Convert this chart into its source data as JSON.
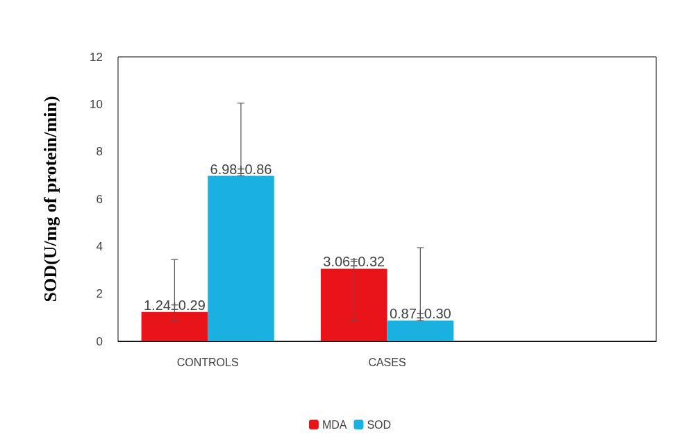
{
  "chart_data": {
    "type": "bar",
    "ylabel": "SOD(U/mg of protein/min)",
    "categories": [
      "CONTROLS",
      "CASES",
      null
    ],
    "series": [
      {
        "name": "MDA",
        "color": "#e8141a",
        "values": [
          1.24,
          3.06,
          null
        ],
        "errors": [
          [
            0.85,
            3.45
          ],
          [
            0.85,
            3.45
          ],
          null
        ],
        "value_labels": [
          "1.24±0.29",
          "3.06±0.32",
          null
        ]
      },
      {
        "name": "SOD",
        "color": "#1ab0e0",
        "values": [
          6.98,
          0.87,
          null
        ],
        "errors": [
          [
            6.98,
            10.05
          ],
          [
            0.87,
            3.95
          ],
          null
        ],
        "value_labels": [
          "6.98±0.86",
          "0.87±0.30",
          null
        ]
      }
    ],
    "ylim": [
      0,
      12
    ],
    "yticks": [
      0,
      2,
      4,
      6,
      8,
      10,
      12
    ],
    "grid": false,
    "legend": "bottom"
  }
}
